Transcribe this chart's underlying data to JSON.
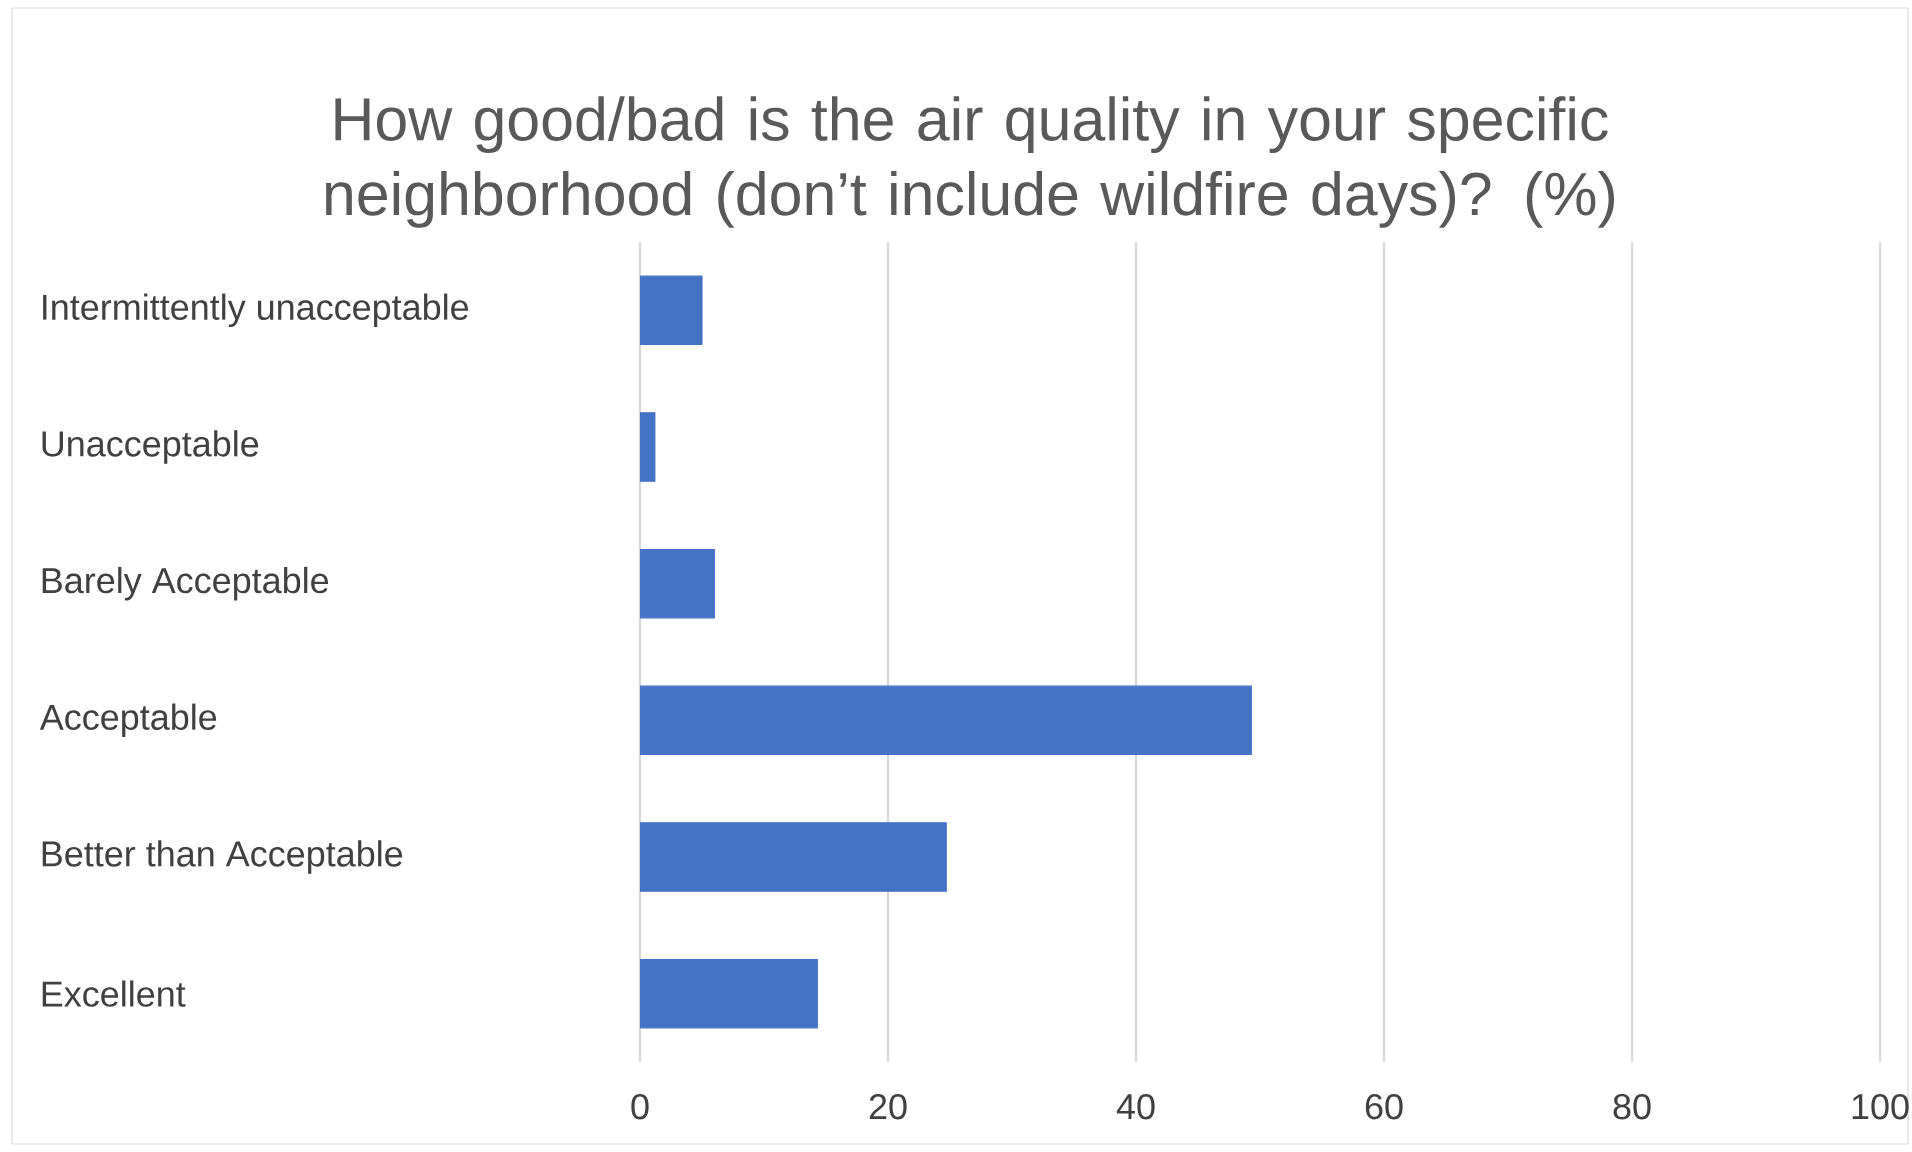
{
  "chart_data": {
    "type": "bar",
    "orientation": "horizontal",
    "title": "How good/bad is the air quality in your specific neighborhood (don’t include wildfire days)? (%)",
    "categories": [
      "Intermittently unacceptable",
      "Unacceptable",
      "Barely Acceptable",
      "Acceptable",
      "Better than Acceptable",
      "Excellent"
    ],
    "values": [
      5,
      1.2,
      6,
      49.3,
      24.7,
      14.3
    ],
    "color": "#4472c4",
    "xlim": [
      0,
      100
    ],
    "xticks": [
      0,
      20,
      40,
      60,
      80,
      100
    ],
    "grid": "x"
  }
}
